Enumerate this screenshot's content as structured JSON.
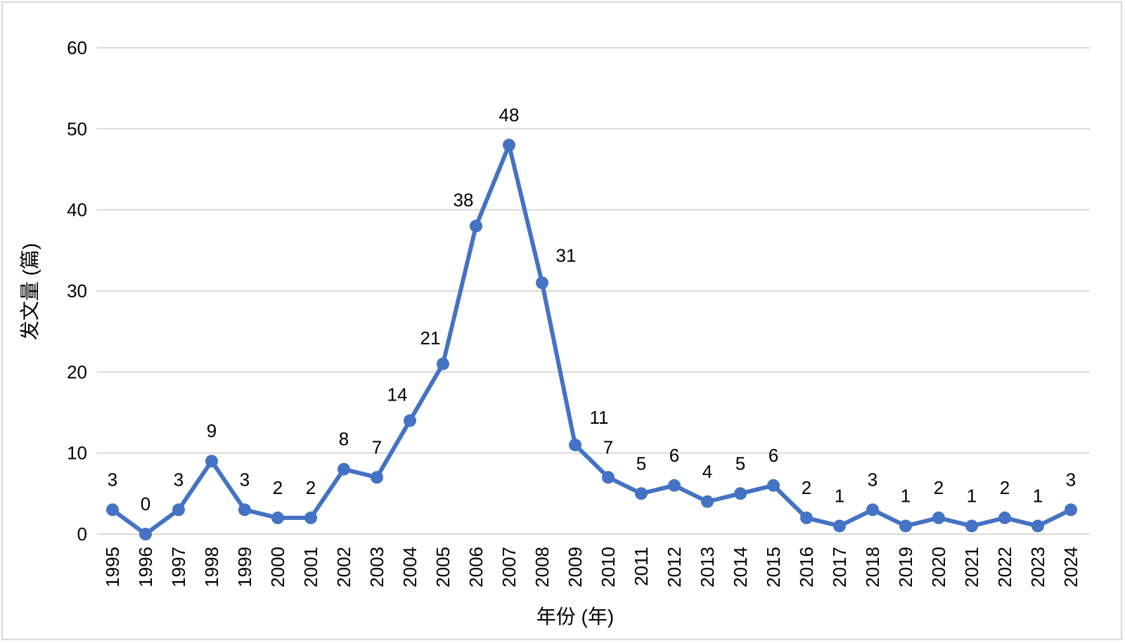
{
  "chart_data": {
    "type": "line",
    "title": "",
    "xlabel": "年份 (年)",
    "ylabel": "发文量 (篇)",
    "ylim": [
      0,
      60
    ],
    "yticks": [
      0,
      10,
      20,
      30,
      40,
      50,
      60
    ],
    "grid": true,
    "legend": "none",
    "categories": [
      "1995",
      "1996",
      "1997",
      "1998",
      "1999",
      "2000",
      "2001",
      "2002",
      "2003",
      "2004",
      "2005",
      "2006",
      "2007",
      "2008",
      "2009",
      "2010",
      "2011",
      "2012",
      "2013",
      "2014",
      "2015",
      "2016",
      "2017",
      "2018",
      "2019",
      "2020",
      "2021",
      "2022",
      "2023",
      "2024"
    ],
    "series": [
      {
        "name": "发文量",
        "color": "#4472C4",
        "values": [
          3,
          0,
          3,
          9,
          3,
          2,
          2,
          8,
          7,
          14,
          21,
          38,
          48,
          31,
          11,
          7,
          5,
          6,
          4,
          5,
          6,
          2,
          1,
          3,
          1,
          2,
          1,
          2,
          1,
          3
        ]
      }
    ],
    "gridline_color": "#d9d9d9",
    "frame_color": "#d9d9d9"
  }
}
